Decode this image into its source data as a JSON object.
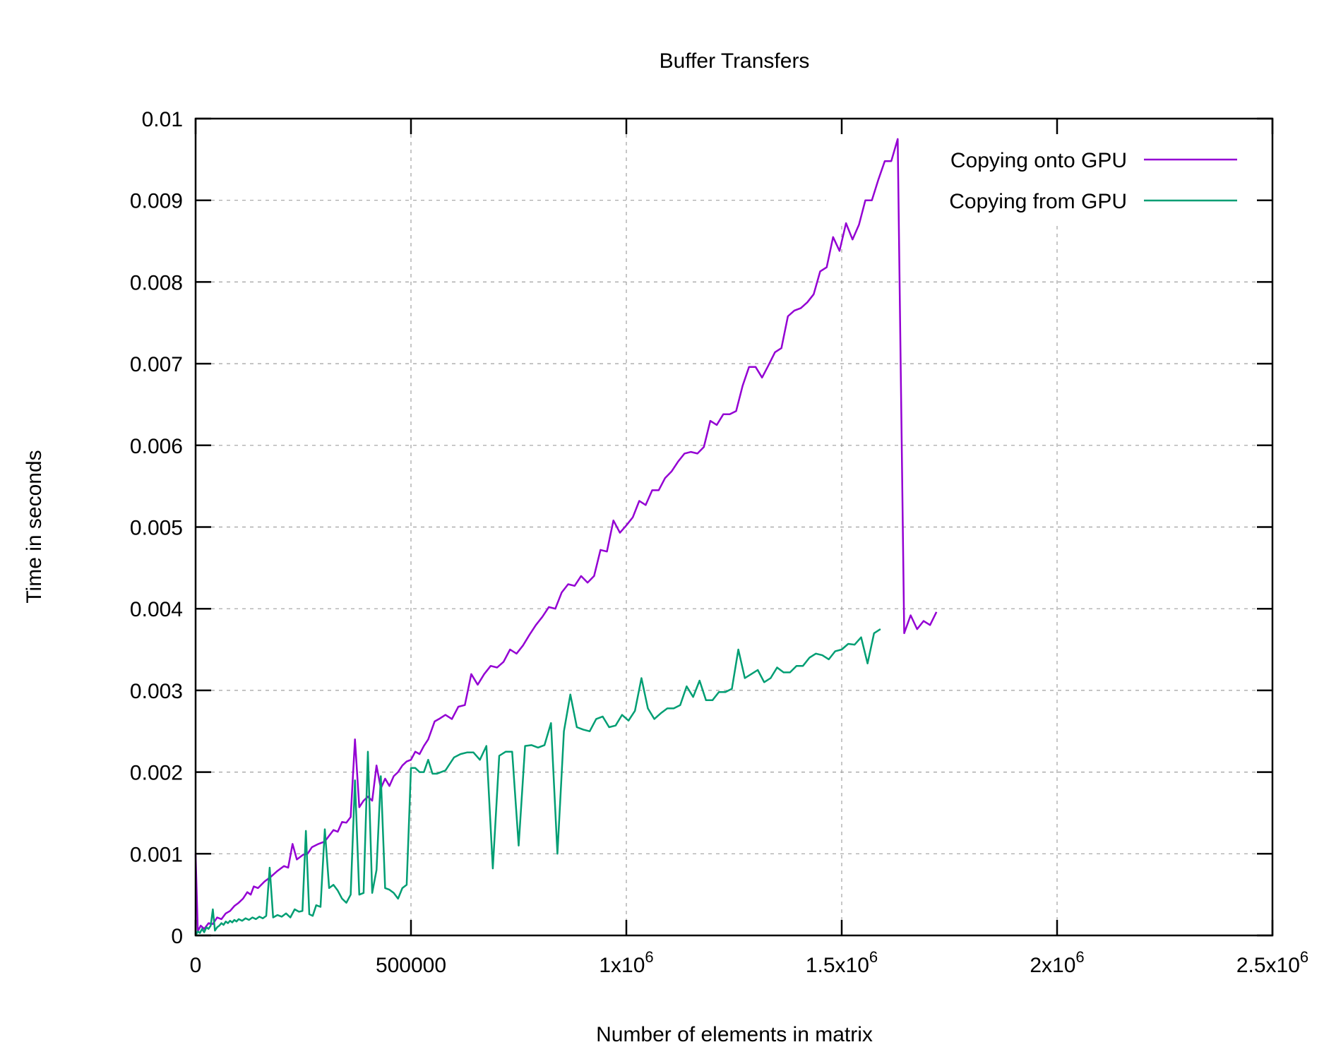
{
  "chart_data": {
    "type": "line",
    "title": "Buffer Transfers",
    "xlabel": "Number of elements in matrix",
    "ylabel": "Time in seconds",
    "xlim": [
      0,
      2500000
    ],
    "ylim": [
      0,
      0.01
    ],
    "grid": true,
    "legend_position": "top-right",
    "x_ticks": [
      {
        "value": 0,
        "label": "0"
      },
      {
        "value": 500000,
        "label": "500000"
      },
      {
        "value": 1000000,
        "label": "1x10",
        "sup": "6"
      },
      {
        "value": 1500000,
        "label": "1.5x10",
        "sup": "6"
      },
      {
        "value": 2000000,
        "label": "2x10",
        "sup": "6"
      },
      {
        "value": 2500000,
        "label": "2.5x10",
        "sup": "6"
      }
    ],
    "y_ticks": [
      {
        "value": 0,
        "label": "0"
      },
      {
        "value": 0.001,
        "label": "0.001"
      },
      {
        "value": 0.002,
        "label": "0.002"
      },
      {
        "value": 0.003,
        "label": "0.003"
      },
      {
        "value": 0.004,
        "label": "0.004"
      },
      {
        "value": 0.005,
        "label": "0.005"
      },
      {
        "value": 0.006,
        "label": "0.006"
      },
      {
        "value": 0.007,
        "label": "0.007"
      },
      {
        "value": 0.008,
        "label": "0.008"
      },
      {
        "value": 0.009,
        "label": "0.009"
      },
      {
        "value": 0.01,
        "label": "0.01"
      }
    ],
    "series": [
      {
        "name": "Copying onto GPU",
        "color": "#9400d3",
        "points": [
          [
            0,
            0.001
          ],
          [
            5000,
            5e-05
          ],
          [
            12000,
            0.00012
          ],
          [
            20000,
            8e-05
          ],
          [
            30000,
            0.00015
          ],
          [
            40000,
            0.00014
          ],
          [
            50000,
            0.00022
          ],
          [
            60000,
            0.0002
          ],
          [
            70000,
            0.00027
          ],
          [
            80000,
            0.0003
          ],
          [
            90000,
            0.00036
          ],
          [
            100000,
            0.0004
          ],
          [
            110000,
            0.00045
          ],
          [
            120000,
            0.00053
          ],
          [
            128000,
            0.0005
          ],
          [
            135000,
            0.0006
          ],
          [
            145000,
            0.00058
          ],
          [
            160000,
            0.00066
          ],
          [
            175000,
            0.00072
          ],
          [
            190000,
            0.00079
          ],
          [
            205000,
            0.00085
          ],
          [
            215000,
            0.00083
          ],
          [
            225000,
            0.00112
          ],
          [
            235000,
            0.00093
          ],
          [
            250000,
            0.00099
          ],
          [
            260000,
            0.001
          ],
          [
            270000,
            0.00108
          ],
          [
            285000,
            0.00112
          ],
          [
            300000,
            0.00115
          ],
          [
            310000,
            0.00122
          ],
          [
            320000,
            0.00129
          ],
          [
            330000,
            0.00127
          ],
          [
            340000,
            0.00139
          ],
          [
            350000,
            0.00138
          ],
          [
            360000,
            0.00145
          ],
          [
            370000,
            0.0024
          ],
          [
            380000,
            0.00157
          ],
          [
            390000,
            0.00165
          ],
          [
            400000,
            0.0017
          ],
          [
            410000,
            0.00165
          ],
          [
            420000,
            0.00208
          ],
          [
            430000,
            0.0018
          ],
          [
            440000,
            0.00192
          ],
          [
            450000,
            0.00183
          ],
          [
            460000,
            0.00195
          ],
          [
            470000,
            0.002
          ],
          [
            480000,
            0.00208
          ],
          [
            490000,
            0.00213
          ],
          [
            500000,
            0.00215
          ],
          [
            510000,
            0.00225
          ],
          [
            520000,
            0.00222
          ],
          [
            530000,
            0.00232
          ],
          [
            540000,
            0.0024
          ],
          [
            555000,
            0.00262
          ],
          [
            565000,
            0.00265
          ],
          [
            580000,
            0.0027
          ],
          [
            595000,
            0.00265
          ],
          [
            610000,
            0.0028
          ],
          [
            625000,
            0.00282
          ],
          [
            640000,
            0.0032
          ],
          [
            655000,
            0.00307
          ],
          [
            670000,
            0.0032
          ],
          [
            685000,
            0.0033
          ],
          [
            700000,
            0.00328
          ],
          [
            715000,
            0.00335
          ],
          [
            730000,
            0.0035
          ],
          [
            745000,
            0.00345
          ],
          [
            760000,
            0.00355
          ],
          [
            775000,
            0.00368
          ],
          [
            790000,
            0.0038
          ],
          [
            805000,
            0.0039
          ],
          [
            820000,
            0.00402
          ],
          [
            835000,
            0.004
          ],
          [
            850000,
            0.0042
          ],
          [
            865000,
            0.0043
          ],
          [
            880000,
            0.00428
          ],
          [
            895000,
            0.0044
          ],
          [
            910000,
            0.00432
          ],
          [
            925000,
            0.0044
          ],
          [
            940000,
            0.00472
          ],
          [
            955000,
            0.0047
          ],
          [
            970000,
            0.00508
          ],
          [
            985000,
            0.00493
          ],
          [
            1000000,
            0.00502
          ],
          [
            1015000,
            0.00512
          ],
          [
            1030000,
            0.00532
          ],
          [
            1045000,
            0.00527
          ],
          [
            1060000,
            0.00545
          ],
          [
            1075000,
            0.00545
          ],
          [
            1090000,
            0.0056
          ],
          [
            1105000,
            0.00568
          ],
          [
            1120000,
            0.0058
          ],
          [
            1135000,
            0.0059
          ],
          [
            1150000,
            0.00592
          ],
          [
            1165000,
            0.0059
          ],
          [
            1180000,
            0.00598
          ],
          [
            1195000,
            0.0063
          ],
          [
            1210000,
            0.00625
          ],
          [
            1225000,
            0.00638
          ],
          [
            1240000,
            0.00638
          ],
          [
            1255000,
            0.00642
          ],
          [
            1270000,
            0.00673
          ],
          [
            1285000,
            0.00696
          ],
          [
            1300000,
            0.00696
          ],
          [
            1315000,
            0.00683
          ],
          [
            1330000,
            0.00698
          ],
          [
            1345000,
            0.00714
          ],
          [
            1360000,
            0.00719
          ],
          [
            1375000,
            0.00758
          ],
          [
            1390000,
            0.00765
          ],
          [
            1405000,
            0.00768
          ],
          [
            1420000,
            0.00775
          ],
          [
            1435000,
            0.00785
          ],
          [
            1450000,
            0.00813
          ],
          [
            1465000,
            0.00818
          ],
          [
            1480000,
            0.00855
          ],
          [
            1495000,
            0.00838
          ],
          [
            1510000,
            0.00872
          ],
          [
            1525000,
            0.00852
          ],
          [
            1540000,
            0.0087
          ],
          [
            1555000,
            0.009
          ],
          [
            1570000,
            0.009
          ],
          [
            1585000,
            0.00925
          ],
          [
            1600000,
            0.00948
          ],
          [
            1615000,
            0.00948
          ],
          [
            1630000,
            0.00975
          ],
          [
            1645000,
            0.0037
          ],
          [
            1660000,
            0.00392
          ],
          [
            1675000,
            0.00375
          ],
          [
            1690000,
            0.00385
          ],
          [
            1705000,
            0.0038
          ],
          [
            1720000,
            0.00396
          ]
        ]
      },
      {
        "name": "Copying from GPU",
        "color": "#009e73",
        "points": [
          [
            0,
            0.0
          ],
          [
            5000,
            5e-05
          ],
          [
            10000,
            3e-05
          ],
          [
            15000,
            8e-05
          ],
          [
            20000,
            4e-05
          ],
          [
            25000,
            0.0001
          ],
          [
            30000,
            8e-05
          ],
          [
            35000,
            0.00012
          ],
          [
            40000,
            0.00032
          ],
          [
            45000,
            6e-05
          ],
          [
            50000,
            0.0001
          ],
          [
            55000,
            0.00012
          ],
          [
            60000,
            0.00015
          ],
          [
            65000,
            0.00013
          ],
          [
            70000,
            0.00017
          ],
          [
            75000,
            0.00015
          ],
          [
            80000,
            0.00018
          ],
          [
            85000,
            0.00016
          ],
          [
            90000,
            0.00019
          ],
          [
            95000,
            0.00017
          ],
          [
            100000,
            0.0002
          ],
          [
            108000,
            0.00018
          ],
          [
            116000,
            0.00021
          ],
          [
            124000,
            0.00019
          ],
          [
            132000,
            0.00022
          ],
          [
            140000,
            0.0002
          ],
          [
            148000,
            0.00023
          ],
          [
            156000,
            0.00021
          ],
          [
            164000,
            0.00024
          ],
          [
            172000,
            0.00083
          ],
          [
            180000,
            0.00022
          ],
          [
            190000,
            0.00025
          ],
          [
            200000,
            0.00023
          ],
          [
            210000,
            0.00027
          ],
          [
            220000,
            0.00022
          ],
          [
            230000,
            0.00032
          ],
          [
            240000,
            0.00029
          ],
          [
            248000,
            0.0003
          ],
          [
            256000,
            0.00128
          ],
          [
            264000,
            0.00026
          ],
          [
            272000,
            0.00024
          ],
          [
            280000,
            0.00037
          ],
          [
            290000,
            0.00035
          ],
          [
            300000,
            0.0013
          ],
          [
            310000,
            0.00058
          ],
          [
            320000,
            0.00062
          ],
          [
            330000,
            0.00055
          ],
          [
            340000,
            0.00045
          ],
          [
            350000,
            0.0004
          ],
          [
            360000,
            0.0005
          ],
          [
            370000,
            0.0019
          ],
          [
            380000,
            0.0005
          ],
          [
            390000,
            0.00052
          ],
          [
            400000,
            0.00225
          ],
          [
            410000,
            0.00052
          ],
          [
            420000,
            0.0008
          ],
          [
            430000,
            0.00195
          ],
          [
            440000,
            0.00058
          ],
          [
            450000,
            0.00056
          ],
          [
            460000,
            0.00052
          ],
          [
            470000,
            0.00045
          ],
          [
            480000,
            0.00058
          ],
          [
            490000,
            0.00062
          ],
          [
            500000,
            0.00205
          ],
          [
            510000,
            0.00205
          ],
          [
            520000,
            0.002
          ],
          [
            530000,
            0.002
          ],
          [
            540000,
            0.00215
          ],
          [
            550000,
            0.00198
          ],
          [
            560000,
            0.00198
          ],
          [
            570000,
            0.002
          ],
          [
            580000,
            0.00202
          ],
          [
            590000,
            0.0021
          ],
          [
            600000,
            0.00218
          ],
          [
            615000,
            0.00222
          ],
          [
            630000,
            0.00224
          ],
          [
            645000,
            0.00224
          ],
          [
            660000,
            0.00215
          ],
          [
            675000,
            0.00232
          ],
          [
            690000,
            0.00082
          ],
          [
            705000,
            0.0022
          ],
          [
            720000,
            0.00225
          ],
          [
            735000,
            0.00225
          ],
          [
            750000,
            0.0011
          ],
          [
            765000,
            0.00232
          ],
          [
            780000,
            0.00233
          ],
          [
            795000,
            0.0023
          ],
          [
            810000,
            0.00233
          ],
          [
            825000,
            0.0026
          ],
          [
            840000,
            0.001
          ],
          [
            855000,
            0.0025
          ],
          [
            870000,
            0.00295
          ],
          [
            885000,
            0.00255
          ],
          [
            900000,
            0.00252
          ],
          [
            915000,
            0.0025
          ],
          [
            930000,
            0.00265
          ],
          [
            945000,
            0.00268
          ],
          [
            960000,
            0.00255
          ],
          [
            975000,
            0.00257
          ],
          [
            990000,
            0.0027
          ],
          [
            1005000,
            0.00263
          ],
          [
            1020000,
            0.00275
          ],
          [
            1035000,
            0.00315
          ],
          [
            1050000,
            0.00278
          ],
          [
            1065000,
            0.00265
          ],
          [
            1080000,
            0.00272
          ],
          [
            1095000,
            0.00278
          ],
          [
            1110000,
            0.00278
          ],
          [
            1125000,
            0.00282
          ],
          [
            1140000,
            0.00305
          ],
          [
            1155000,
            0.00292
          ],
          [
            1170000,
            0.00312
          ],
          [
            1185000,
            0.00288
          ],
          [
            1200000,
            0.00288
          ],
          [
            1215000,
            0.00298
          ],
          [
            1230000,
            0.00298
          ],
          [
            1245000,
            0.00302
          ],
          [
            1260000,
            0.0035
          ],
          [
            1275000,
            0.00315
          ],
          [
            1290000,
            0.0032
          ],
          [
            1305000,
            0.00325
          ],
          [
            1320000,
            0.0031
          ],
          [
            1335000,
            0.00315
          ],
          [
            1350000,
            0.00328
          ],
          [
            1365000,
            0.00322
          ],
          [
            1380000,
            0.00322
          ],
          [
            1395000,
            0.0033
          ],
          [
            1410000,
            0.0033
          ],
          [
            1425000,
            0.0034
          ],
          [
            1440000,
            0.00345
          ],
          [
            1455000,
            0.00343
          ],
          [
            1470000,
            0.00338
          ],
          [
            1485000,
            0.00348
          ],
          [
            1500000,
            0.0035
          ],
          [
            1515000,
            0.00357
          ],
          [
            1530000,
            0.00356
          ],
          [
            1545000,
            0.00365
          ],
          [
            1560000,
            0.00333
          ],
          [
            1575000,
            0.0037
          ],
          [
            1590000,
            0.00375
          ]
        ]
      }
    ]
  }
}
